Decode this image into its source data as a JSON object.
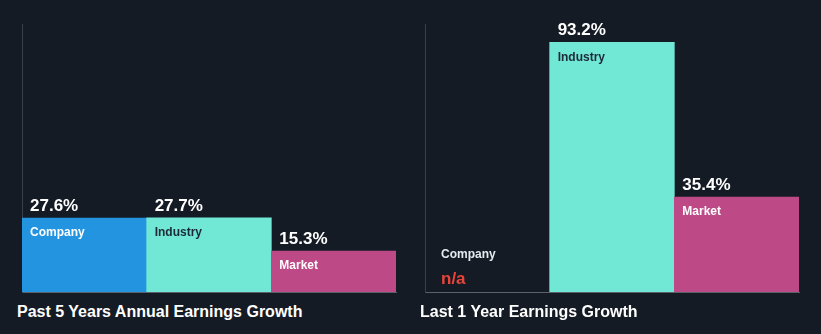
{
  "chart_data": [
    {
      "type": "bar",
      "title": "Past 5 Years Annual Earnings Growth",
      "categories": [
        "Company",
        "Industry",
        "Market"
      ],
      "values": [
        27.6,
        27.7,
        15.3
      ],
      "value_labels": [
        "27.6%",
        "27.7%",
        "15.3%"
      ],
      "colors": [
        "#2394df",
        "#71e7d6",
        "#bd4a87"
      ],
      "ylim": [
        0,
        100
      ],
      "grid": false,
      "data_labels": true,
      "tick_labels": false
    },
    {
      "type": "bar",
      "title": "Last 1 Year Earnings Growth",
      "categories": [
        "Company",
        "Industry",
        "Market"
      ],
      "values": [
        null,
        93.2,
        35.4
      ],
      "value_labels": [
        "n/a",
        "93.2%",
        "35.4%"
      ],
      "colors": [
        "#2394df",
        "#71e7d6",
        "#bd4a87"
      ],
      "ylim": [
        0,
        100
      ],
      "grid": false,
      "data_labels": true,
      "tick_labels": false
    }
  ]
}
